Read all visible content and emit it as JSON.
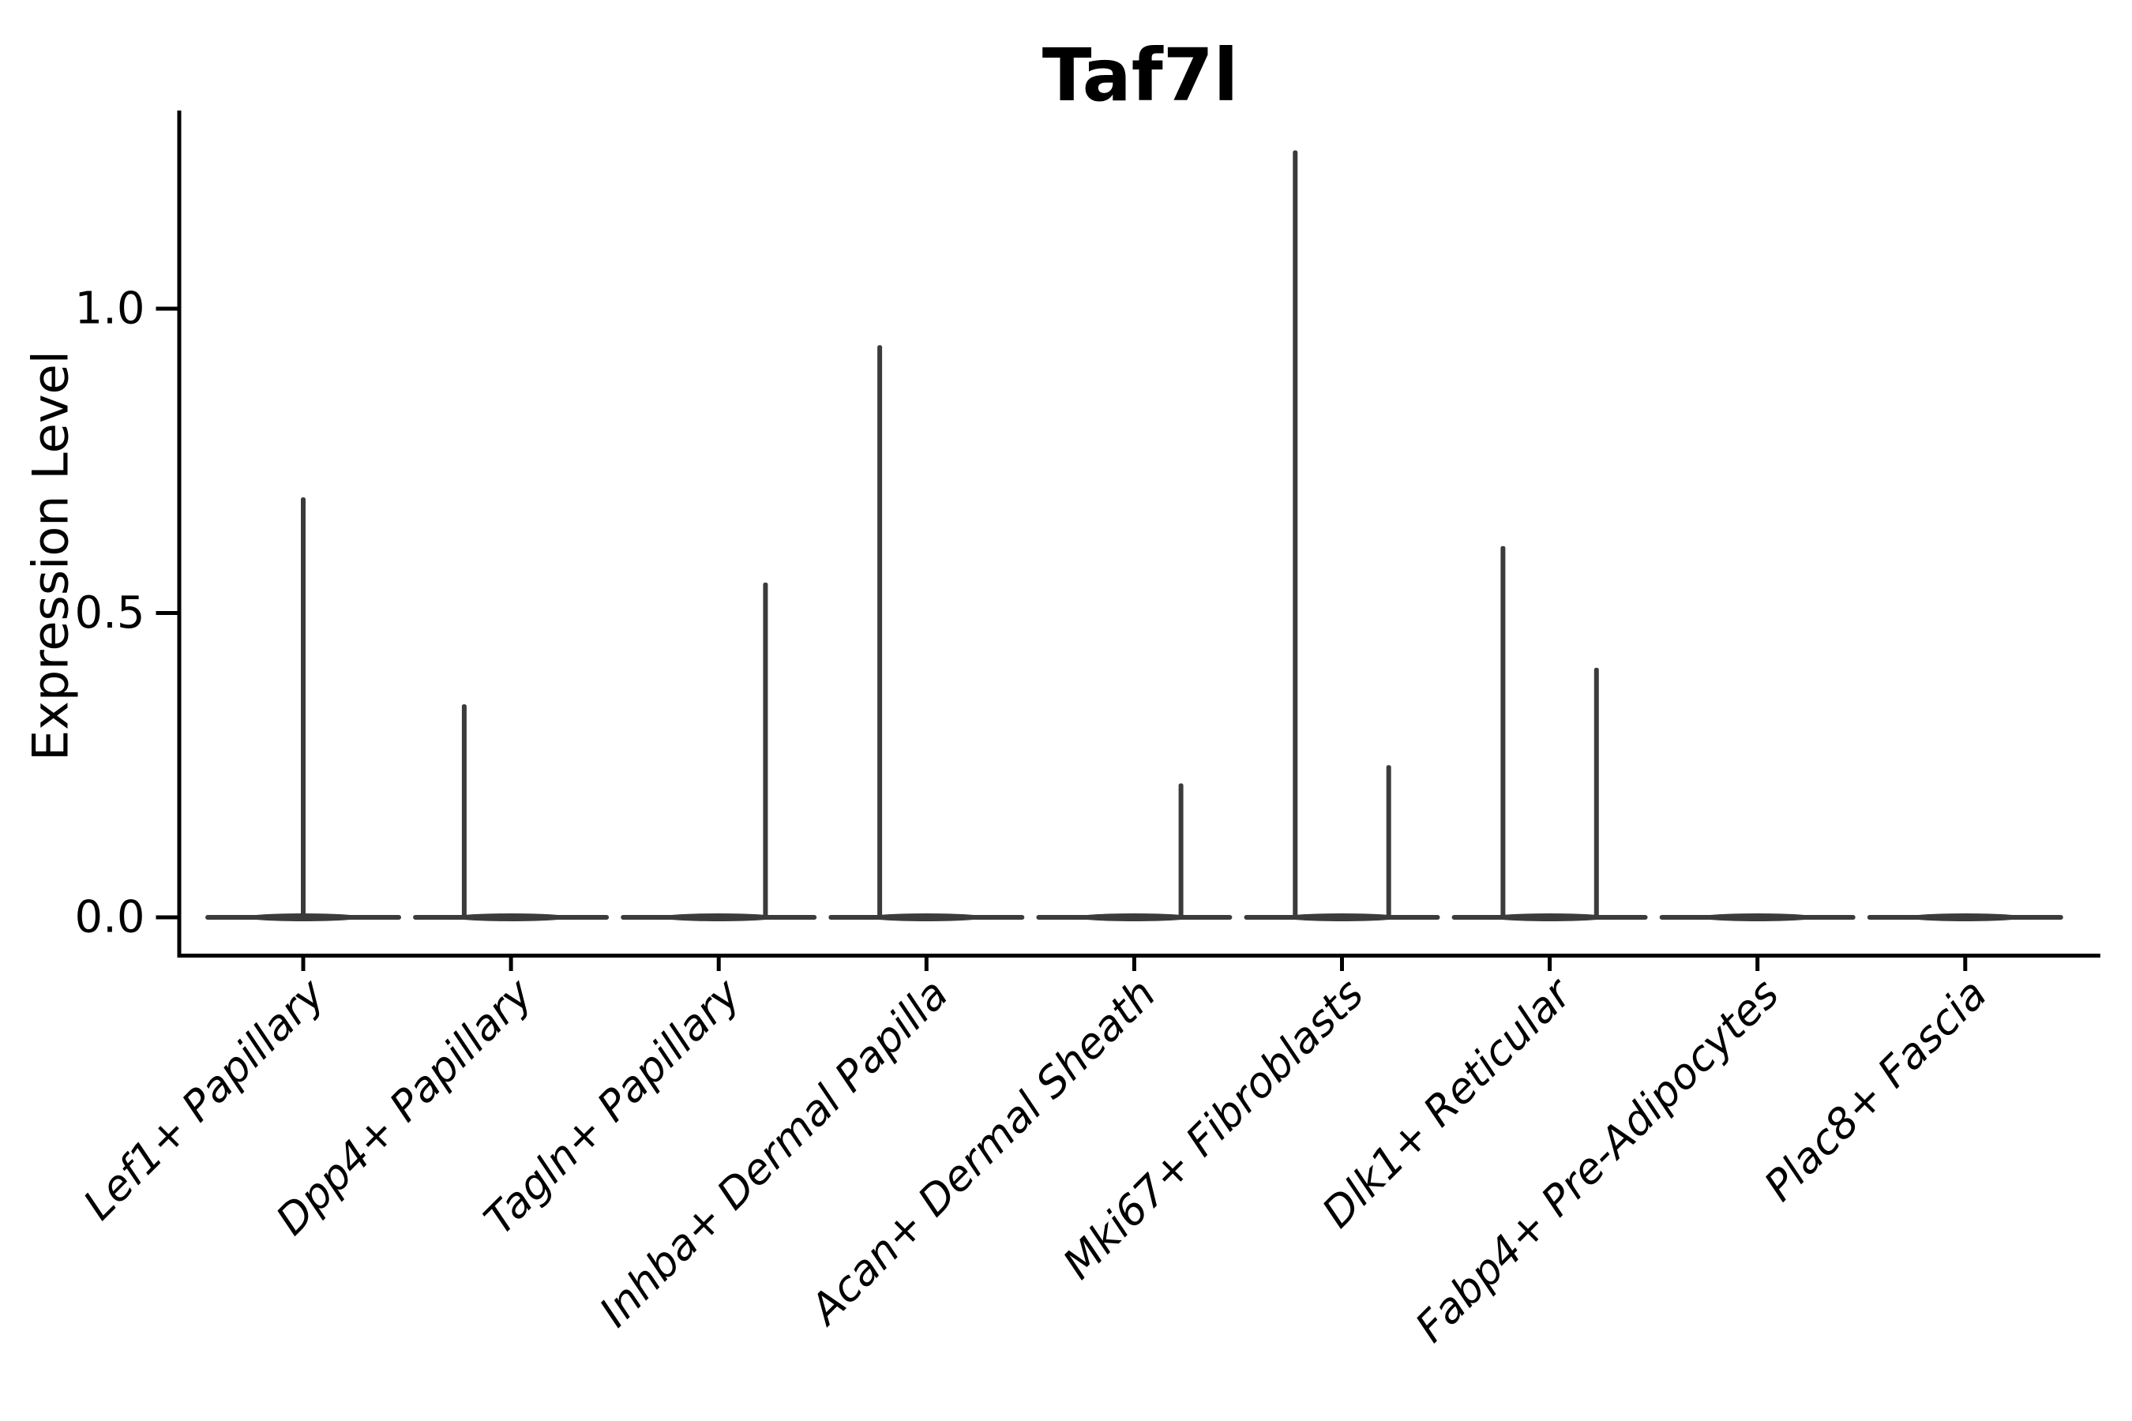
{
  "title": "Taf7l",
  "chart_data": {
    "type": "violin",
    "title": "Taf7l",
    "xlabel": "",
    "ylabel": "Expression Level",
    "ytick_labels": [
      "0.0",
      "0.5",
      "1.0"
    ],
    "ytick_values": [
      0.0,
      0.5,
      1.0
    ],
    "ylim": [
      -0.06,
      1.33
    ],
    "grid": false,
    "legend": false,
    "categories": [
      "Lef1+ Papillary",
      "Dpp4+ Papillary",
      "Tagln+ Papillary",
      "Inhba+ Dermal Papilla",
      "Acan+ Dermal Sheath",
      "Mki67+ Fibroblasts",
      "Dlk1+ Reticular",
      "Fabp4+ Pre-Adipocytes",
      "Plac8+ Fascia"
    ],
    "description": "Flat violins at expression 0 with thin vertical density spikes; spike offset is a fraction of category spacing, max is the top expression value of each spike.",
    "violins": [
      {
        "category": "Lef1+ Papillary",
        "baseline": 0.0,
        "spikes": [
          {
            "offset": 0.0,
            "max": 0.69
          }
        ]
      },
      {
        "category": "Dpp4+ Papillary",
        "baseline": 0.0,
        "spikes": [
          {
            "offset": -0.225,
            "max": 0.35
          }
        ]
      },
      {
        "category": "Tagln+ Papillary",
        "baseline": 0.0,
        "spikes": [
          {
            "offset": 0.225,
            "max": 0.55
          }
        ]
      },
      {
        "category": "Inhba+ Dermal Papilla",
        "baseline": 0.0,
        "spikes": [
          {
            "offset": -0.225,
            "max": 0.94
          }
        ]
      },
      {
        "category": "Acan+ Dermal Sheath",
        "baseline": 0.0,
        "spikes": [
          {
            "offset": 0.225,
            "max": 0.22
          }
        ]
      },
      {
        "category": "Mki67+ Fibroblasts",
        "baseline": 0.0,
        "spikes": [
          {
            "offset": -0.225,
            "max": 1.26
          },
          {
            "offset": 0.225,
            "max": 0.25
          }
        ]
      },
      {
        "category": "Dlk1+ Reticular",
        "baseline": 0.0,
        "spikes": [
          {
            "offset": -0.225,
            "max": 0.61
          },
          {
            "offset": 0.225,
            "max": 0.41
          }
        ]
      },
      {
        "category": "Fabp4+ Pre-Adipocytes",
        "baseline": 0.0,
        "spikes": []
      },
      {
        "category": "Plac8+ Fascia",
        "baseline": 0.0,
        "spikes": []
      }
    ],
    "colors": {
      "violin_stroke": "#3b3b3b",
      "axis": "#000000",
      "text": "#000000",
      "background": "#ffffff"
    }
  }
}
